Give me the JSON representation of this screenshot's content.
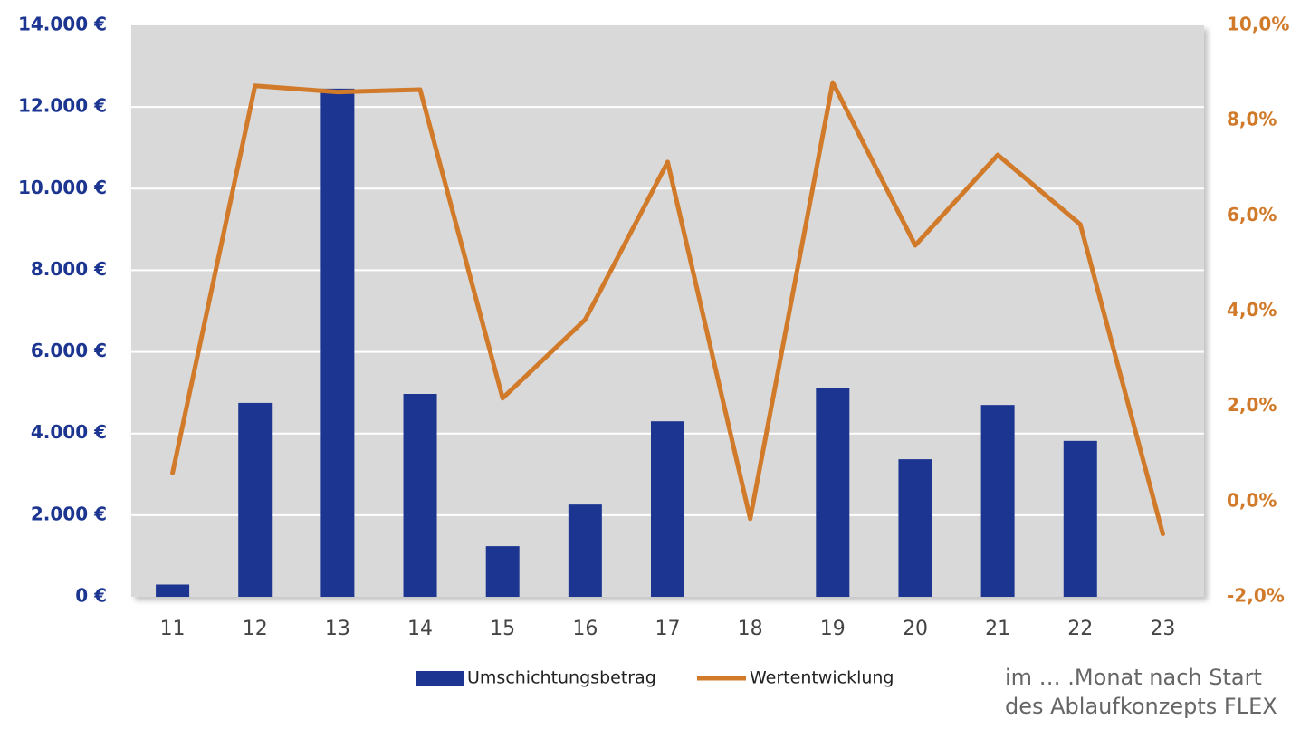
{
  "chart_data": {
    "type": "bar_line",
    "categories": [
      "11",
      "12",
      "13",
      "14",
      "15",
      "16",
      "17",
      "18",
      "19",
      "20",
      "21",
      "22",
      "23"
    ],
    "series": [
      {
        "name": "Umschichtungsbetrag",
        "type": "bar",
        "color": "#1c3591",
        "axis": "y",
        "values": [
          300,
          4750,
          12450,
          4970,
          1240,
          2260,
          4300,
          null,
          5120,
          3370,
          4700,
          3820,
          null
        ]
      },
      {
        "name": "Wertentwicklung",
        "type": "line",
        "color": "#d07a2a",
        "axis": "y2",
        "values": [
          0.6,
          8.73,
          8.6,
          8.65,
          2.17,
          3.82,
          7.13,
          -0.36,
          8.8,
          5.38,
          7.28,
          5.82,
          -0.68
        ]
      }
    ],
    "ylim": [
      0,
      14000
    ],
    "yticks": [
      {
        "value": 0,
        "label": "0 €"
      },
      {
        "value": 2000,
        "label": "2.000 €"
      },
      {
        "value": 4000,
        "label": "4.000 €"
      },
      {
        "value": 6000,
        "label": "6.000 €"
      },
      {
        "value": 8000,
        "label": "8.000 €"
      },
      {
        "value": 10000,
        "label": "10.000 €"
      },
      {
        "value": 12000,
        "label": "12.000 €"
      },
      {
        "value": 14000,
        "label": "14.000 €"
      }
    ],
    "y2lim": [
      -2,
      10
    ],
    "y2ticks": [
      {
        "value": -2,
        "label": "-2,0%"
      },
      {
        "value": 0,
        "label": "0,0%"
      },
      {
        "value": 2,
        "label": "2,0%"
      },
      {
        "value": 4,
        "label": "4,0%"
      },
      {
        "value": 6,
        "label": "6,0%"
      },
      {
        "value": 8,
        "label": "8,0%"
      },
      {
        "value": 10,
        "label": "10,0%"
      }
    ],
    "grid": true,
    "legend": "bottom",
    "note_lines": [
      "im … .Monat nach Start",
      "des Ablaufkonzepts FLEX"
    ]
  }
}
